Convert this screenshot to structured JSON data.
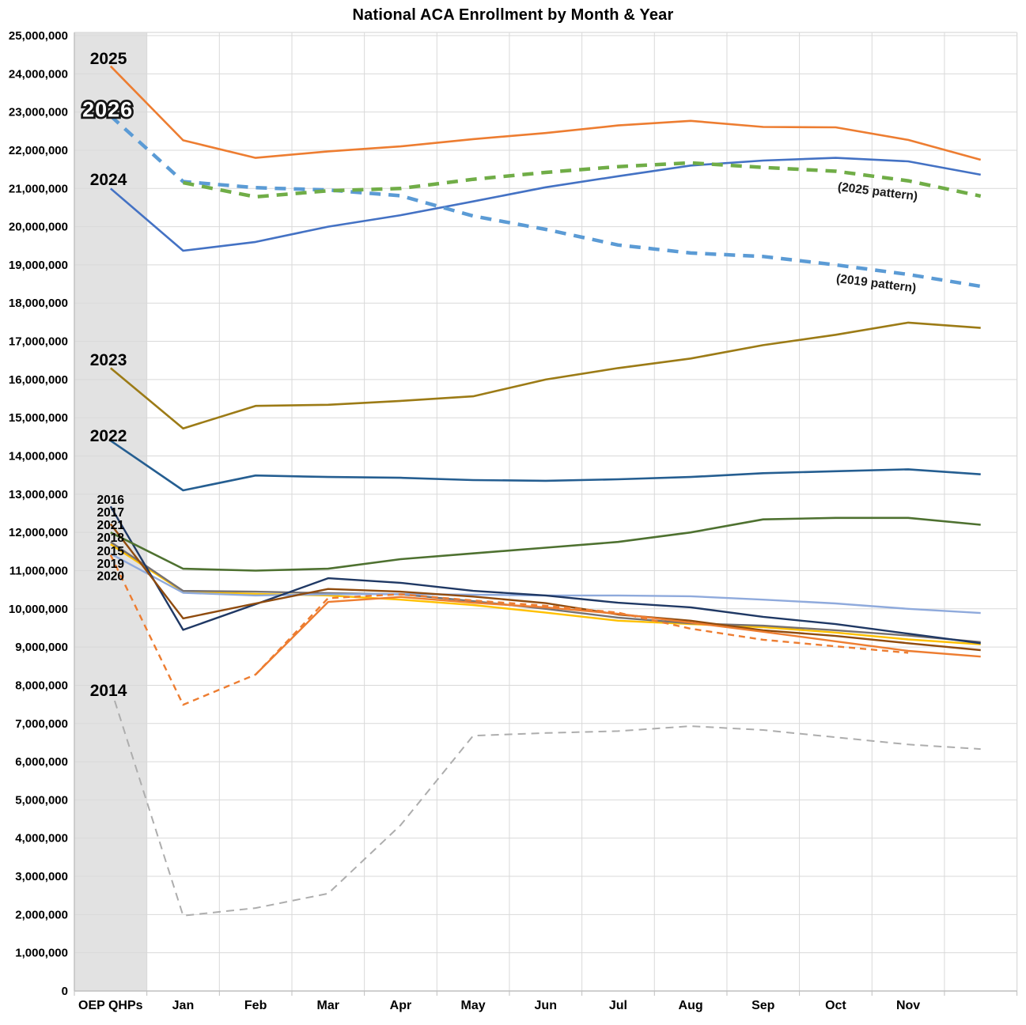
{
  "title": "National ACA Enrollment by Month & Year",
  "colors": {
    "background": "#ffffff",
    "gridline": "#d9d9d9",
    "axis_line": "#bfbfbf",
    "oep_band": "#e2e2e2",
    "text": "#000000"
  },
  "chart_data": {
    "type": "line",
    "title": "National ACA Enrollment by Month & Year",
    "categories": [
      "OEP QHPs",
      "Jan",
      "Feb",
      "Mar",
      "Apr",
      "May",
      "Jun",
      "Jul",
      "Aug",
      "Sep",
      "Oct",
      "Nov",
      ""
    ],
    "ylim": [
      0,
      25000000
    ],
    "y_tick_step": 1000000,
    "grid": true,
    "legend_position": "none",
    "highlight_band_category": "OEP QHPs",
    "series": [
      {
        "name": "2014",
        "color": "#adadad",
        "dash": "10 7",
        "width": 2,
        "values": [
          7930000,
          1970000,
          2170000,
          2550000,
          4340000,
          6680000,
          6750000,
          6800000,
          6930000,
          6830000,
          6640000,
          6450000,
          6330000
        ]
      },
      {
        "name": "2015",
        "color": "#ffc000",
        "dash": null,
        "width": 2.4,
        "values": [
          11690000,
          10450000,
          10390000,
          10350000,
          10240000,
          10100000,
          9900000,
          9690000,
          9600000,
          9520000,
          9380000,
          9200000,
          9070000
        ]
      },
      {
        "name": "2018",
        "color": "#767171",
        "dash": null,
        "width": 2.4,
        "values": [
          11750000,
          10470000,
          10450000,
          10410000,
          10380000,
          10200000,
          10000000,
          9770000,
          9620000,
          9560000,
          9440000,
          9300000,
          9130000
        ]
      },
      {
        "name": "2019",
        "color": "#8faadc",
        "dash": null,
        "width": 2.4,
        "values": [
          11440000,
          10420000,
          10350000,
          10380000,
          10390000,
          10370000,
          10350000,
          10350000,
          10330000,
          10240000,
          10140000,
          10000000,
          9890000
        ]
      },
      {
        "name": "2016",
        "color": "#1f3864",
        "dash": null,
        "width": 2.4,
        "values": [
          12680000,
          9450000,
          10120000,
          10800000,
          10680000,
          10470000,
          10350000,
          10160000,
          10040000,
          9790000,
          9600000,
          9350000,
          9100000
        ]
      },
      {
        "name": "2017",
        "color": "#8f4b0e",
        "dash": null,
        "width": 2.4,
        "values": [
          12220000,
          9750000,
          10140000,
          10520000,
          10450000,
          10320000,
          10150000,
          9850000,
          9690000,
          9440000,
          9290000,
          9100000,
          8920000
        ]
      },
      {
        "name": "2020",
        "color": "#ed7d31",
        "dash": null,
        "width": 2.4,
        "values": [
          null,
          null,
          8280000,
          10180000,
          10310000,
          10160000,
          10040000,
          9870000,
          9640000,
          9400000,
          9150000,
          8900000,
          8750000
        ]
      },
      {
        "name": "2020 (est.)",
        "color": "#ed7d31",
        "dash": "8 6",
        "width": 2.4,
        "values": [
          11410000,
          7490000,
          8280000,
          10280000,
          10380000,
          10220000,
          10080000,
          9900000,
          9480000,
          9190000,
          9020000,
          8850000,
          null
        ]
      },
      {
        "name": "2021",
        "color": "#4e7130",
        "dash": null,
        "width": 2.6,
        "values": [
          12000000,
          11050000,
          11000000,
          11050000,
          11300000,
          11450000,
          11600000,
          11750000,
          12000000,
          12340000,
          12380000,
          12380000,
          12200000
        ]
      },
      {
        "name": "2022",
        "color": "#255e91",
        "dash": null,
        "width": 2.6,
        "values": [
          14400000,
          13100000,
          13490000,
          13450000,
          13430000,
          13370000,
          13350000,
          13390000,
          13450000,
          13550000,
          13600000,
          13650000,
          13520000
        ]
      },
      {
        "name": "2023",
        "color": "#9c7b16",
        "dash": null,
        "width": 2.6,
        "values": [
          16300000,
          14720000,
          15310000,
          15340000,
          15440000,
          15560000,
          16000000,
          16300000,
          16550000,
          16900000,
          17170000,
          17490000,
          17350000
        ]
      },
      {
        "name": "2024",
        "color": "#4472c4",
        "dash": null,
        "width": 2.6,
        "values": [
          21000000,
          19370000,
          19600000,
          20000000,
          20300000,
          20660000,
          21030000,
          21320000,
          21600000,
          21730000,
          21800000,
          21710000,
          21360000
        ]
      },
      {
        "name": "2026 (2019 pattern)",
        "color": "#5b9bd5",
        "dash": "14 10",
        "width": 4.5,
        "values": [
          22900000,
          21180000,
          21020000,
          20960000,
          20810000,
          20280000,
          19930000,
          19520000,
          19310000,
          19220000,
          19000000,
          18750000,
          18440000
        ]
      },
      {
        "name": "2026 (2025 pattern)",
        "color": "#70ad47",
        "dash": "14 10",
        "width": 4.5,
        "values": [
          null,
          21150000,
          20780000,
          20940000,
          21000000,
          21240000,
          21420000,
          21570000,
          21670000,
          21550000,
          21450000,
          21200000,
          20800000
        ]
      },
      {
        "name": "2025",
        "color": "#ed7d31",
        "dash": null,
        "width": 2.6,
        "values": [
          24200000,
          22260000,
          21800000,
          21970000,
          22100000,
          22290000,
          22450000,
          22650000,
          22770000,
          22610000,
          22600000,
          22270000,
          21750000
        ]
      }
    ],
    "series_labels": [
      {
        "text": "2025",
        "cat": -0.03,
        "value": 24400000,
        "size": "lg",
        "style": "plain"
      },
      {
        "text": "2026",
        "cat": -0.04,
        "value": 23060000,
        "size": "xl",
        "style": "outline"
      },
      {
        "text": "2024",
        "cat": -0.03,
        "value": 21230000,
        "size": "lg",
        "style": "plain"
      },
      {
        "text": "2023",
        "cat": -0.03,
        "value": 16520000,
        "size": "lg",
        "style": "plain"
      },
      {
        "text": "2022",
        "cat": -0.03,
        "value": 14530000,
        "size": "lg",
        "style": "plain"
      },
      {
        "text": "2016",
        "cat": 0,
        "value": 12850000,
        "size": "sm",
        "style": "plain"
      },
      {
        "text": "2017",
        "cat": 0,
        "value": 12520000,
        "size": "sm",
        "style": "plain"
      },
      {
        "text": "2021",
        "cat": 0,
        "value": 12190000,
        "size": "sm",
        "style": "plain"
      },
      {
        "text": "2018",
        "cat": 0,
        "value": 11860000,
        "size": "sm",
        "style": "plain"
      },
      {
        "text": "2015",
        "cat": 0,
        "value": 11510000,
        "size": "sm",
        "style": "plain"
      },
      {
        "text": "2019",
        "cat": 0,
        "value": 11180000,
        "size": "sm",
        "style": "plain"
      },
      {
        "text": "2020",
        "cat": 0,
        "value": 10850000,
        "size": "sm",
        "style": "plain"
      },
      {
        "text": "2014",
        "cat": -0.03,
        "value": 7860000,
        "size": "lg",
        "style": "plain"
      }
    ],
    "annotations": [
      {
        "text": "(2025 pattern)",
        "cat": 10.58,
        "value": 20920000,
        "rotation": 7
      },
      {
        "text": "(2019 pattern)",
        "cat": 10.56,
        "value": 18520000,
        "rotation": 7
      }
    ]
  }
}
